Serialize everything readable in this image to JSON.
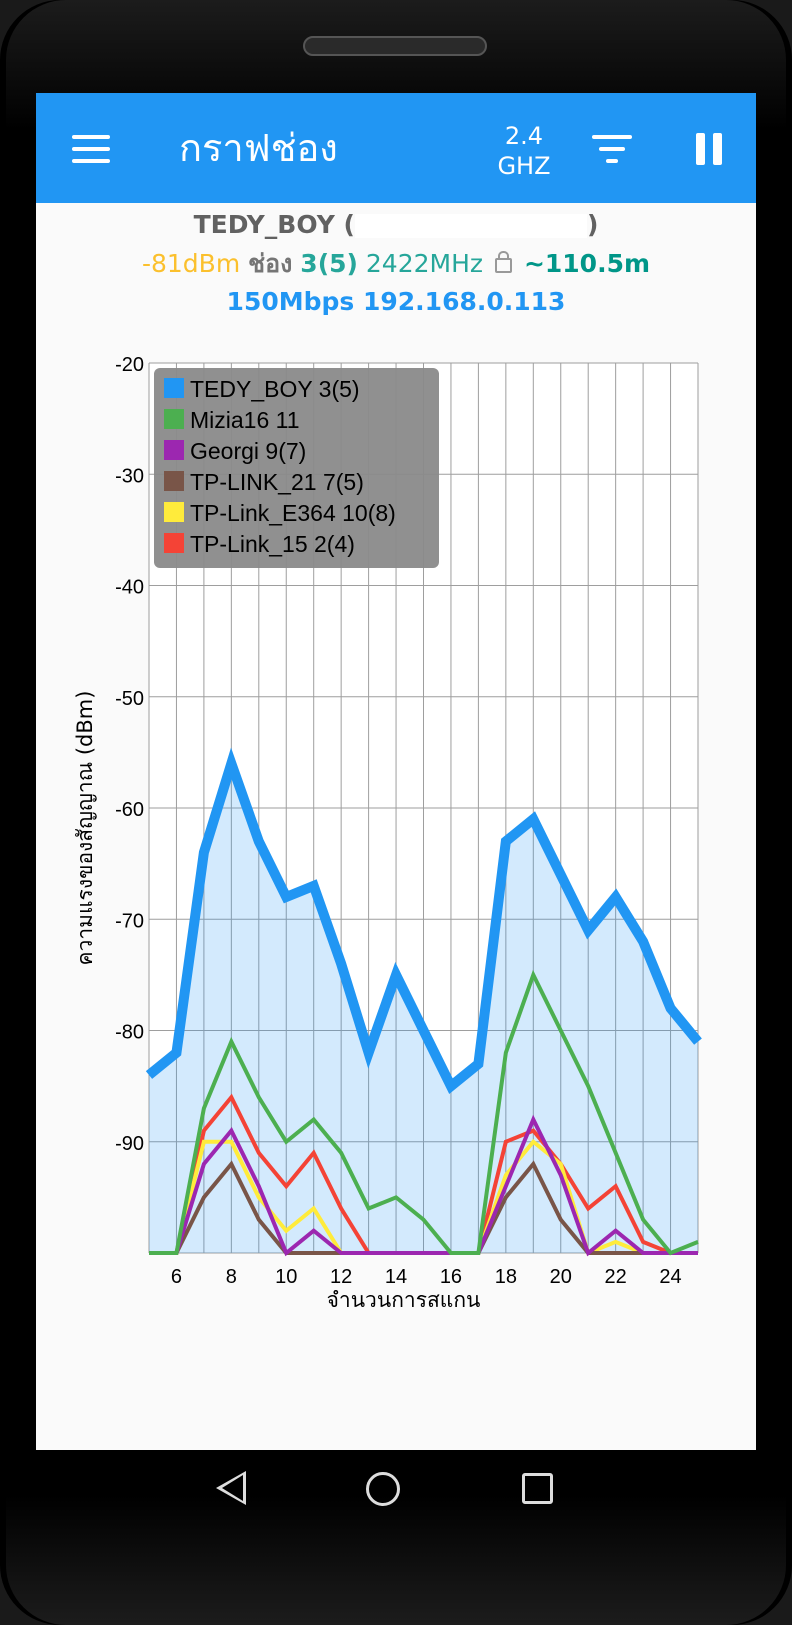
{
  "toolbar": {
    "title": "กราฟช่อง",
    "band_line1": "2.4",
    "band_line2": "GHZ"
  },
  "connection": {
    "ssid": "TEDY_BOY",
    "signal": "-81dBm",
    "channel_label": "ช่อง",
    "channel": "3(5)",
    "frequency": "2422MHz",
    "distance": "~110.5m",
    "speed": "150Mbps",
    "ip": "192.168.0.113"
  },
  "chart_data": {
    "type": "line",
    "xlabel": "จำนวนการสแกน",
    "ylabel": "ความแรงของสัญญาณ (dBm)",
    "xlim": [
      5,
      25
    ],
    "ylim": [
      -100,
      -20
    ],
    "x_ticks": [
      6,
      8,
      10,
      12,
      14,
      16,
      18,
      20,
      22,
      24
    ],
    "y_ticks": [
      -20,
      -30,
      -40,
      -50,
      -60,
      -70,
      -80,
      -90
    ],
    "grid": true,
    "legend_position": "top-left",
    "x": [
      5,
      6,
      7,
      8,
      9,
      10,
      11,
      12,
      13,
      14,
      15,
      16,
      17,
      18,
      19,
      20,
      21,
      22,
      23,
      24,
      25
    ],
    "series": [
      {
        "name": "TEDY_BOY 3(5)",
        "color": "#2196F3",
        "filled": true,
        "values": [
          -84,
          -82,
          -64,
          -56,
          -63,
          -68,
          -67,
          -74,
          -82,
          -75,
          -80,
          -85,
          -83,
          -63,
          -61,
          -66,
          -71,
          -68,
          -72,
          -78,
          -81
        ]
      },
      {
        "name": "Mizia16 11",
        "color": "#4CAF50",
        "values": [
          -100,
          -100,
          -87,
          -81,
          -86,
          -90,
          -88,
          -91,
          -96,
          -95,
          -97,
          -100,
          -100,
          -82,
          -75,
          -80,
          -85,
          -91,
          -97,
          -100,
          -99
        ]
      },
      {
        "name": "Georgi 9(7)",
        "color": "#9C27B0",
        "values": [
          -100,
          -100,
          -92,
          -89,
          -94,
          -100,
          -98,
          -100,
          -100,
          -100,
          -100,
          -100,
          -100,
          -94,
          -88,
          -93,
          -100,
          -98,
          -100,
          -100,
          -100
        ]
      },
      {
        "name": "TP-LINK_21 7(5)",
        "color": "#795548",
        "values": [
          -100,
          -100,
          -95,
          -92,
          -97,
          -100,
          -100,
          -100,
          -100,
          -100,
          -100,
          -100,
          -100,
          -95,
          -92,
          -97,
          -100,
          -100,
          -100,
          -100,
          -100
        ]
      },
      {
        "name": "TP-Link_E364 10(8)",
        "color": "#FFEB3B",
        "values": [
          -100,
          -100,
          -90,
          -90,
          -95,
          -98,
          -96,
          -100,
          -100,
          -100,
          -100,
          -100,
          -100,
          -93,
          -90,
          -92,
          -100,
          -99,
          -100,
          -100,
          -100
        ]
      },
      {
        "name": "TP-Link_15 2(4)",
        "color": "#F44336",
        "values": [
          -100,
          -100,
          -89,
          -86,
          -91,
          -94,
          -91,
          -96,
          -100,
          -100,
          -100,
          -100,
          -100,
          -90,
          -89,
          -92,
          -96,
          -94,
          -99,
          -100,
          -100
        ]
      }
    ]
  }
}
